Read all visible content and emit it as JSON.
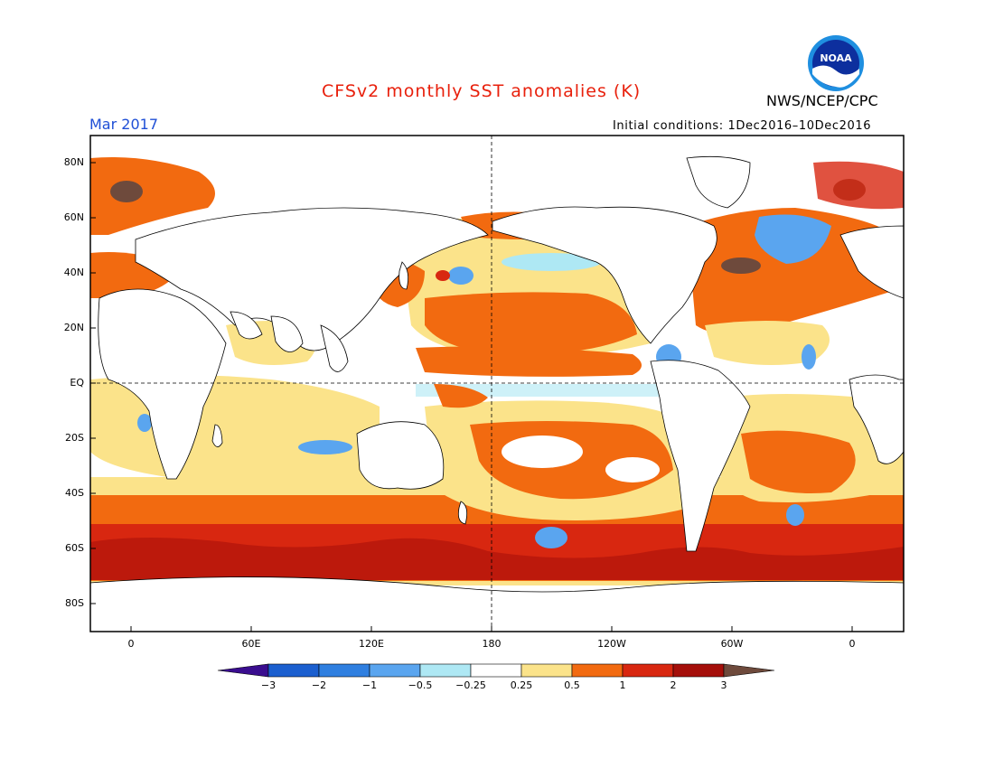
{
  "header": {
    "title": "CFSv2 monthly SST anomalies (K)",
    "agency": "NWS/NCEP/CPC",
    "logo_text": "NOAA",
    "month": "Mar 2017",
    "initial_conditions": "Initial conditions: 1Dec2016–10Dec2016"
  },
  "axes": {
    "lat_labels": [
      "80N",
      "60N",
      "40N",
      "20N",
      "EQ",
      "20S",
      "40S",
      "60S",
      "80S"
    ],
    "lon_labels": [
      "0",
      "60E",
      "120E",
      "180",
      "120W",
      "60W",
      "0"
    ]
  },
  "colorbar": {
    "labels": [
      "−3",
      "−2",
      "−1",
      "−0.5",
      "−0.25",
      "0.25",
      "0.5",
      "1",
      "2",
      "3"
    ],
    "colors": [
      "#3a0d8f",
      "#1b5fcf",
      "#2f7fe0",
      "#5aa5ef",
      "#aee8f4",
      "#ffffff",
      "#fbe38a",
      "#f26a10",
      "#d82710",
      "#a50f0a",
      "#6e4a3c"
    ]
  }
}
